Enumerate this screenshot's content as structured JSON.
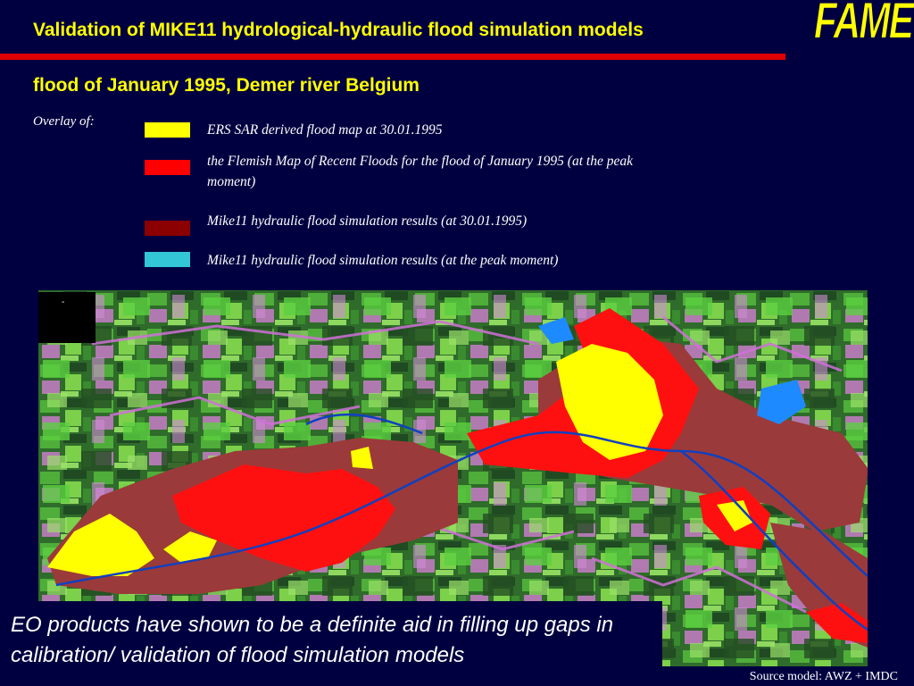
{
  "header": {
    "title": "Validation of MIKE11 hydrological-hydraulic flood simulation models",
    "subtitle": "flood of January 1995, Demer river Belgium",
    "logo_text": "FAME"
  },
  "legend": {
    "label": "Overlay of:",
    "items": [
      {
        "color": "#ffff00",
        "text": "ERS SAR derived flood map at 30.01.1995"
      },
      {
        "color": "#ff0000",
        "text": "the Flemish Map of Recent Floods for the flood of January 1995 (at the peak moment)"
      },
      {
        "color": "#8b0000",
        "text": "Mike11 hydraulic flood simulation results (at 30.01.1995)"
      },
      {
        "color": "#33c6d6",
        "text": "Mike11 hydraulic flood simulation results (at the peak moment)"
      }
    ]
  },
  "map": {
    "inset_mark": "-"
  },
  "caption": "EO products have shown to be a definite aid in filling up gaps in calibration/ validation of flood simulation models",
  "source": "Source model: AWZ + IMDC",
  "colors": {
    "background": "#000040",
    "title": "#ffff00",
    "accent_bar": "#e00000",
    "text": "#ffffff"
  }
}
